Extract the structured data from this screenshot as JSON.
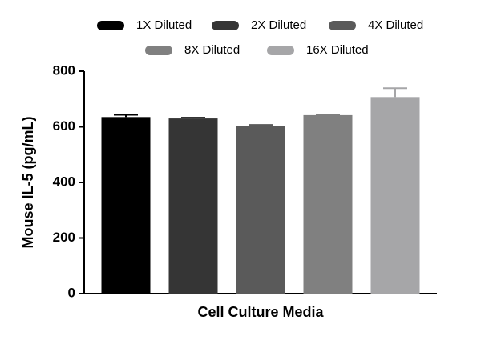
{
  "chart_data": {
    "type": "bar",
    "y_label": "Mouse IL-5 (pg/mL)",
    "categories": [
      "Cell Culture Media"
    ],
    "series": [
      {
        "name": "1X Diluted",
        "color": "#000000",
        "values": [
          635
        ],
        "errors": [
          8
        ]
      },
      {
        "name": "2X Diluted",
        "color": "#353535",
        "values": [
          630
        ],
        "errors": [
          3
        ]
      },
      {
        "name": "4X Diluted",
        "color": "#5a5a5a",
        "values": [
          603
        ],
        "errors": [
          4
        ]
      },
      {
        "name": "8X Diluted",
        "color": "#808080",
        "values": [
          642
        ],
        "errors": [
          0
        ]
      },
      {
        "name": "16X Diluted",
        "color": "#a6a6a8",
        "values": [
          707
        ],
        "errors": [
          32
        ]
      }
    ],
    "ylim": [
      0,
      800
    ],
    "yticks": [
      0,
      200,
      400,
      600,
      800
    ]
  }
}
